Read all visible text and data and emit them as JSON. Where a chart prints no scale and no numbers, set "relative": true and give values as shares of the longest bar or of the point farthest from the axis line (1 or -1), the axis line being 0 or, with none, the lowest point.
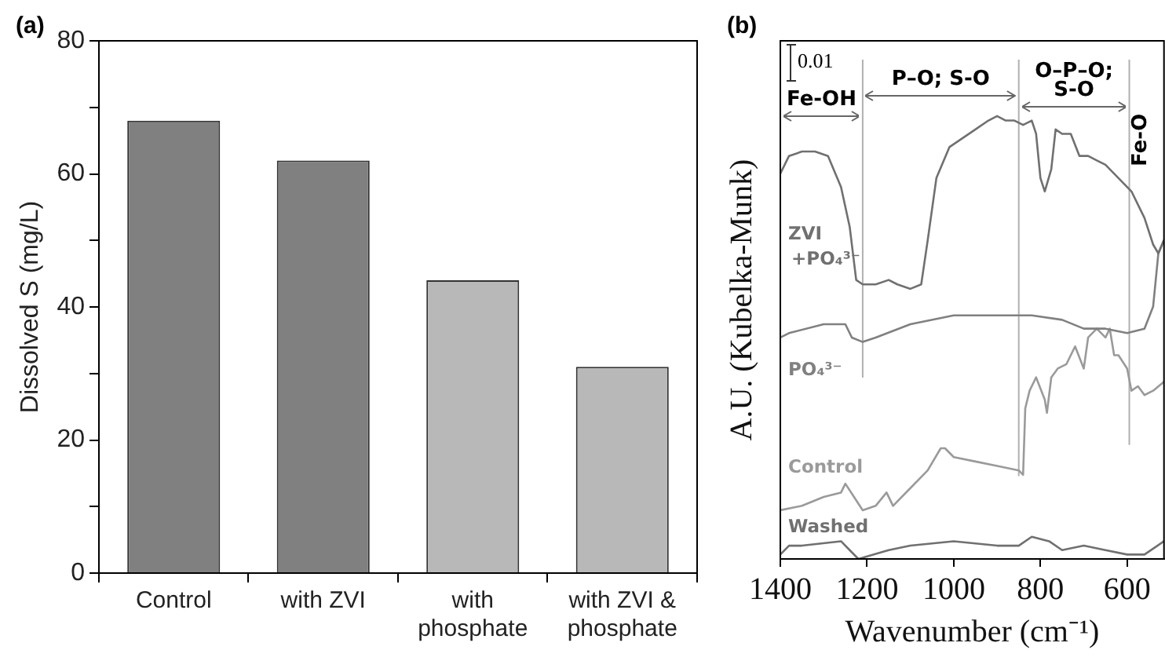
{
  "chart_data": [
    {
      "type": "bar",
      "title": "(a)",
      "ylabel": "Dissolved S (mg/L)",
      "categories": [
        "Control",
        "with ZVI",
        "with phosphate",
        "with ZVI & phosphate"
      ],
      "values": [
        68,
        62,
        44,
        31
      ],
      "colors": [
        "#808080",
        "#808080",
        "#b8b8b8",
        "#b8b8b8"
      ],
      "ylim": [
        0,
        80
      ],
      "yticks": [
        0,
        {
          "value": 10,
          "label": null
        },
        20,
        {
          "value": 30,
          "label": null
        },
        40,
        {
          "value": 50,
          "label": null
        },
        60,
        {
          "value": 70,
          "label": null
        },
        80
      ],
      "grid": false,
      "legend": false
    },
    {
      "type": "line",
      "title": "(b)",
      "xlabel": "Wavenumber (cm⁻¹)",
      "ylabel": "A.U. (Kubelka-Munk)",
      "relative": true,
      "xlim": [
        1400,
        515
      ],
      "xticks": [
        1400,
        1200,
        1000,
        800,
        600
      ],
      "series": [
        {
          "name": "ZVI +PO₄³⁻",
          "color": "#707070",
          "x": [
            1400,
            1380,
            1350,
            1320,
            1290,
            1260,
            1240,
            1225,
            1210,
            1180,
            1150,
            1130,
            1100,
            1075,
            1060,
            1040,
            1010,
            980,
            950,
            920,
            900,
            880,
            860,
            840,
            820,
            810,
            800,
            790,
            775,
            765,
            750,
            730,
            710,
            690,
            670,
            650,
            620,
            590,
            560,
            540,
            528,
            515
          ],
          "values": [
            0.87,
            0.91,
            0.92,
            0.92,
            0.91,
            0.84,
            0.75,
            0.63,
            0.62,
            0.62,
            0.63,
            0.62,
            0.61,
            0.62,
            0.72,
            0.86,
            0.93,
            0.95,
            0.97,
            0.99,
            1.0,
            0.99,
            0.99,
            0.98,
            0.99,
            0.96,
            0.86,
            0.83,
            0.88,
            0.97,
            0.96,
            0.96,
            0.91,
            0.91,
            0.9,
            0.89,
            0.86,
            0.83,
            0.77,
            0.71,
            0.69,
            0.72
          ]
        },
        {
          "name": "PO₄³⁻",
          "color": "#808080",
          "x": [
            1400,
            1380,
            1300,
            1250,
            1235,
            1210,
            1180,
            1100,
            1000,
            900,
            820,
            750,
            700,
            650,
            600,
            560,
            540,
            528,
            515
          ],
          "values": [
            0.5,
            0.51,
            0.53,
            0.53,
            0.5,
            0.49,
            0.5,
            0.53,
            0.55,
            0.55,
            0.55,
            0.54,
            0.52,
            0.52,
            0.51,
            0.52,
            0.57,
            0.69,
            0.72
          ]
        },
        {
          "name": "Control",
          "color": "#9a9a9a",
          "x": [
            1400,
            1350,
            1300,
            1260,
            1250,
            1230,
            1210,
            1180,
            1155,
            1140,
            1100,
            1060,
            1030,
            1020,
            1000,
            950,
            900,
            850,
            840,
            835,
            825,
            810,
            790,
            785,
            775,
            760,
            740,
            720,
            700,
            690,
            670,
            650,
            640,
            630,
            620,
            600,
            590,
            575,
            560,
            540,
            515
          ],
          "values": [
            0.11,
            0.12,
            0.14,
            0.15,
            0.17,
            0.14,
            0.11,
            0.12,
            0.15,
            0.12,
            0.16,
            0.2,
            0.25,
            0.25,
            0.23,
            0.22,
            0.21,
            0.2,
            0.19,
            0.34,
            0.38,
            0.41,
            0.36,
            0.33,
            0.41,
            0.43,
            0.44,
            0.48,
            0.43,
            0.5,
            0.52,
            0.5,
            0.52,
            0.46,
            0.46,
            0.43,
            0.38,
            0.39,
            0.37,
            0.38,
            0.4
          ]
        },
        {
          "name": "Washed",
          "color": "#707070",
          "x": [
            1400,
            1380,
            1350,
            1260,
            1240,
            1220,
            1150,
            1100,
            1000,
            900,
            850,
            820,
            780,
            750,
            700,
            650,
            600,
            560,
            530,
            515
          ],
          "values": [
            0.01,
            0.03,
            0.03,
            0.04,
            0.02,
            0.0,
            0.02,
            0.03,
            0.04,
            0.03,
            0.03,
            0.05,
            0.04,
            0.02,
            0.03,
            0.02,
            0.01,
            0.01,
            0.03,
            0.04
          ]
        }
      ],
      "ref_lines": [
        {
          "axis": "x",
          "value": 1210,
          "color": "#b0b0b0"
        },
        {
          "axis": "x",
          "value": 850,
          "color": "#b0b0b0"
        },
        {
          "axis": "x",
          "value": 595,
          "color": "#b0b0b0"
        }
      ],
      "annotations": [
        "0.01",
        "Fe-OH",
        "P–O; S-O",
        "O–P–O; S-O",
        "Fe-O"
      ],
      "grid": false,
      "legend": false,
      "marker": "none",
      "line_style": "solid"
    }
  ]
}
